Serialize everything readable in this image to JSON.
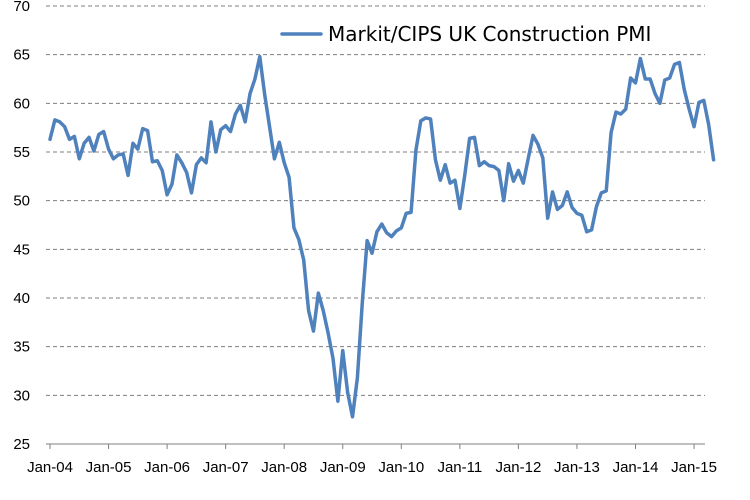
{
  "chart_data": {
    "type": "line",
    "title": "",
    "xlabel": "",
    "ylabel": "",
    "ylim": [
      25,
      70
    ],
    "yticks": [
      25,
      30,
      35,
      40,
      45,
      50,
      55,
      60,
      65,
      70
    ],
    "xticks": [
      "Jan-04",
      "Jan-05",
      "Jan-06",
      "Jan-07",
      "Jan-08",
      "Jan-09",
      "Jan-10",
      "Jan-11",
      "Jan-12",
      "Jan-13",
      "Jan-14",
      "Jan-15"
    ],
    "x_start": "2004-01",
    "x_end": "2015-05",
    "grid": "horizontal dashed",
    "legend_position": "top-right",
    "series": [
      {
        "name": "Markit/CIPS UK Construction PMI",
        "color": "#4f81bd",
        "values": [
          56.3,
          58.3,
          58.1,
          57.6,
          56.3,
          56.6,
          54.3,
          55.9,
          56.5,
          55.1,
          56.8,
          57.1,
          55.3,
          54.3,
          54.7,
          54.8,
          52.6,
          55.9,
          55.3,
          57.4,
          57.2,
          54.0,
          54.1,
          53.1,
          50.6,
          51.7,
          54.7,
          53.9,
          52.9,
          50.8,
          53.7,
          54.4,
          53.9,
          58.1,
          55.0,
          57.3,
          57.7,
          57.1,
          58.9,
          59.8,
          58.1,
          61.0,
          62.5,
          64.8,
          60.9,
          57.6,
          54.3,
          56.0,
          53.9,
          52.4,
          47.2,
          46.0,
          43.9,
          38.7,
          36.6,
          40.5,
          38.7,
          36.4,
          33.8,
          29.4,
          34.6,
          30.3,
          27.8,
          31.8,
          39.5,
          45.9,
          44.6,
          46.8,
          47.6,
          46.7,
          46.3,
          46.9,
          47.2,
          48.7,
          48.8,
          55.2,
          58.2,
          58.5,
          58.4,
          54.2,
          52.1,
          53.7,
          51.8,
          52.1,
          49.2,
          52.6,
          56.4,
          56.5,
          53.6,
          54.0,
          53.6,
          53.5,
          53.1,
          50.0,
          53.8,
          52.0,
          53.1,
          51.8,
          54.3,
          56.7,
          55.8,
          54.4,
          48.2,
          50.9,
          49.1,
          49.5,
          50.9,
          49.3,
          48.7,
          48.5,
          46.8,
          47.0,
          49.4,
          50.8,
          51.0,
          57.0,
          59.1,
          58.9,
          59.4,
          62.6,
          62.1,
          64.6,
          62.5,
          62.5,
          61.0,
          60.0,
          62.4,
          62.6,
          64.0,
          64.2,
          61.4,
          59.4,
          57.6,
          60.1,
          60.3,
          57.8,
          54.2
        ]
      }
    ]
  }
}
